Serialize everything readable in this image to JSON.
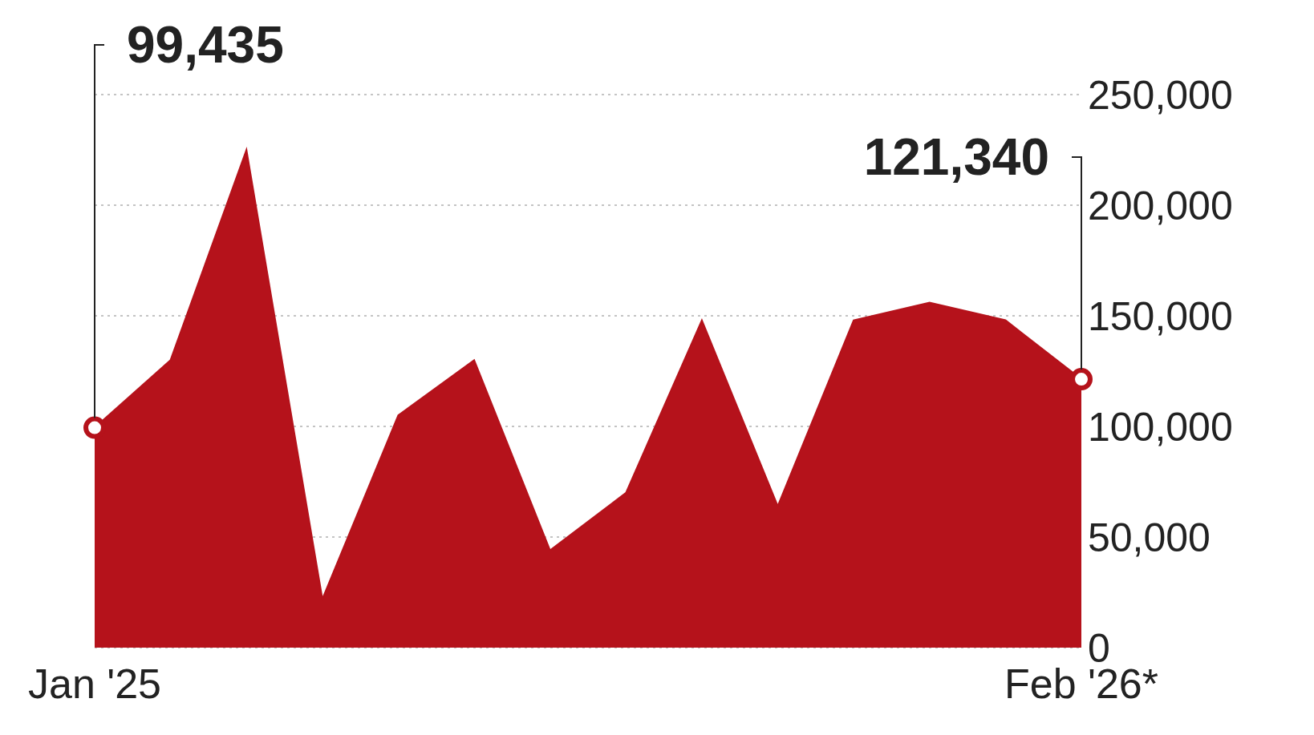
{
  "chart_data": {
    "type": "area",
    "categories": [
      "Jan '25",
      null,
      null,
      null,
      null,
      null,
      null,
      null,
      null,
      null,
      null,
      null,
      null,
      "Feb '26*"
    ],
    "values": [
      99435,
      130000,
      225000,
      22000,
      105000,
      130000,
      44000,
      70000,
      148000,
      64000,
      148000,
      156000,
      148000,
      121340
    ],
    "value_labels": [
      "99,435",
      null,
      null,
      null,
      null,
      null,
      null,
      null,
      null,
      null,
      null,
      null,
      null,
      "121,340"
    ],
    "color": "#b5121b",
    "ylim": [
      0,
      250000
    ],
    "yticks": [
      {
        "value": 0,
        "label": "0"
      },
      {
        "value": 50000,
        "label": "50,000"
      },
      {
        "value": 100000,
        "label": "100,000"
      },
      {
        "value": 150000,
        "label": "150,000"
      },
      {
        "value": 200000,
        "label": "200,000"
      },
      {
        "value": 250000,
        "label": "250,000"
      }
    ],
    "grid": "y"
  }
}
